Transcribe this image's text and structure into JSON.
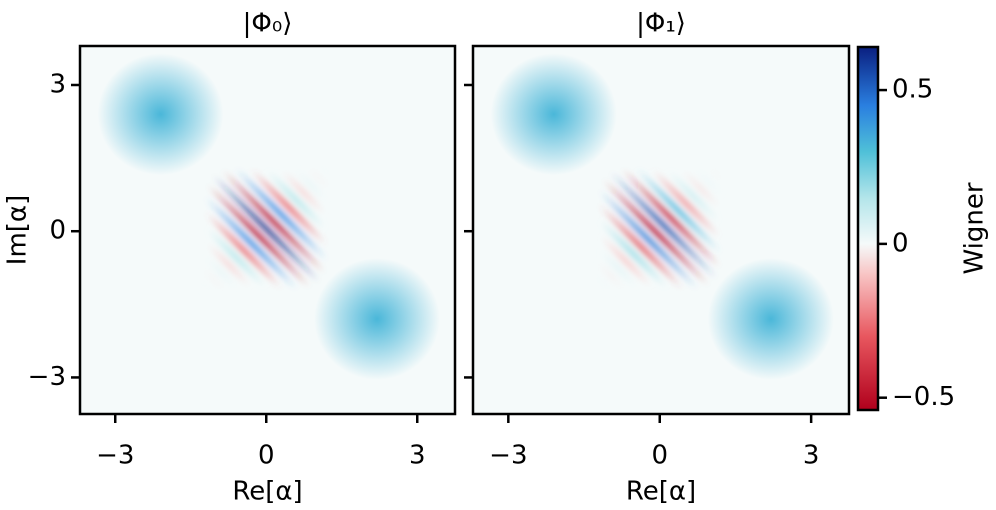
{
  "chart_data": [
    {
      "type": "heatmap",
      "title": "|Φ₀⟩",
      "xlabel": "Re[α]",
      "ylabel": "Im[α]",
      "xlim": [
        -3.7,
        3.75
      ],
      "ylim": [
        -3.75,
        3.8
      ],
      "xticks": [
        {
          "value": -3,
          "label": "−3"
        },
        0,
        3
      ],
      "yticks": [
        3,
        0,
        {
          "value": -3,
          "label": "−3"
        }
      ],
      "peaks": [
        {
          "x": -2.1,
          "y": 2.4,
          "value": 0.32
        },
        {
          "x": 2.2,
          "y": -1.8,
          "value": 0.32
        }
      ],
      "fringes": {
        "x": 0,
        "y": 0.05,
        "value": 0.64,
        "phase": 0
      }
    },
    {
      "type": "heatmap",
      "title": "|Φ₁⟩",
      "xlabel": "Re[α]",
      "xlim": [
        -3.7,
        3.75
      ],
      "ylim": [
        -3.75,
        3.8
      ],
      "xticks": [
        {
          "value": -3,
          "label": "−3"
        },
        0,
        3
      ],
      "yticks": [
        3,
        0,
        -3
      ],
      "peaks": [
        {
          "x": -2.1,
          "y": 2.4,
          "value": 0.32
        },
        {
          "x": 2.2,
          "y": -1.8,
          "value": 0.32
        }
      ],
      "fringes": {
        "x": 0,
        "y": 0.05,
        "value": 0.58,
        "phase": -90
      }
    }
  ],
  "colorbar": {
    "label": "Wigner",
    "lim": [
      -0.54,
      0.64
    ],
    "ticks": [
      0.5,
      0,
      {
        "value": -0.5,
        "label": "−0.5"
      }
    ],
    "colormap": [
      {
        "value": -0.54,
        "color": "#b0001c"
      },
      {
        "value": -0.3,
        "color": "#e8575f"
      },
      {
        "value": -0.1,
        "color": "#f8c4c4"
      },
      {
        "value": 0,
        "color": "#f5fafa"
      },
      {
        "value": 0.15,
        "color": "#b3e5ea"
      },
      {
        "value": 0.3,
        "color": "#4fc0d8"
      },
      {
        "value": 0.45,
        "color": "#2a7fe0"
      },
      {
        "value": 0.64,
        "color": "#0a1f80"
      }
    ]
  }
}
